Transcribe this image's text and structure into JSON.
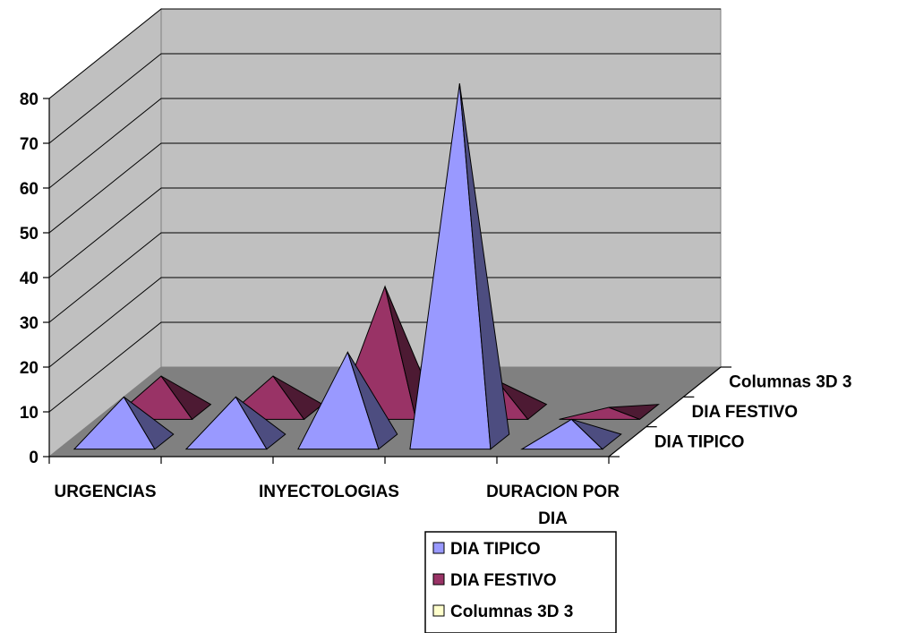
{
  "chart_data": {
    "type": "bar",
    "subtype": "3d-pyramid",
    "title": "",
    "xlabel": "",
    "ylabel": "",
    "ylim": [
      0,
      80
    ],
    "yticks": [
      0,
      10,
      20,
      30,
      40,
      50,
      60,
      70,
      80
    ],
    "grid": true,
    "legend_position": "bottom",
    "categories": [
      "URGENCIAS",
      "",
      "INYECTOLOGIAS",
      "",
      "DURACION POR DIA"
    ],
    "depth_labels": [
      "Columnas 3D 3",
      "DIA FESTIVO",
      "DIA TIPICO"
    ],
    "series": [
      {
        "name": "DIA TIPICO",
        "color": "#9999ff",
        "values": [
          10,
          10,
          20,
          80,
          5
        ]
      },
      {
        "name": "DIA FESTIVO",
        "color": "#993366",
        "values": [
          8,
          8,
          28,
          7,
          1
        ]
      },
      {
        "name": "Columnas 3D 3",
        "color": "#ffffcc",
        "values": [
          0,
          0,
          0,
          0,
          0
        ]
      }
    ]
  }
}
